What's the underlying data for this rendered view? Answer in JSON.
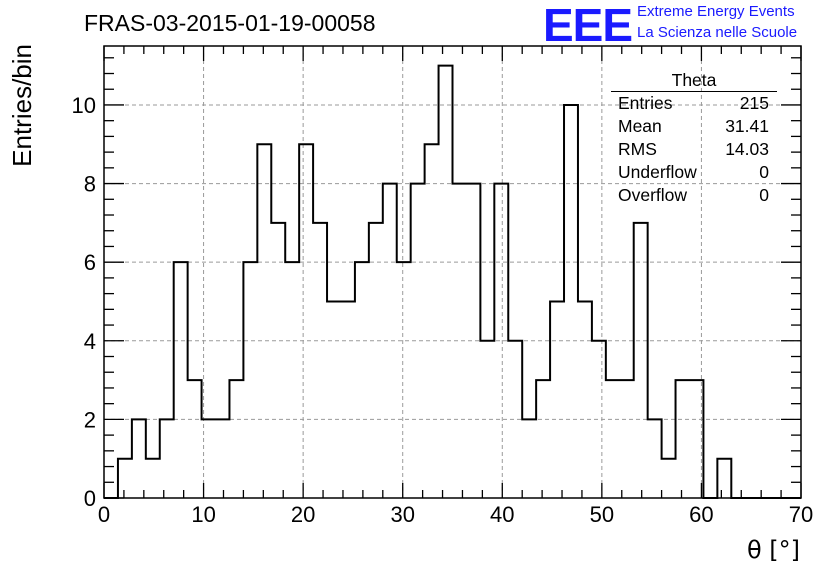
{
  "header": {
    "title": "FRAS-03-2015-01-19-00058",
    "logo_text": "EEE",
    "logo_line1": "Extreme Energy Events",
    "logo_line2": "La Scienza nelle Scuole",
    "logo_color": "#1a1aff"
  },
  "stats_box": {
    "name": "Theta",
    "rows": [
      {
        "label": "Entries",
        "value": "215"
      },
      {
        "label": "Mean",
        "value": "31.41"
      },
      {
        "label": "RMS",
        "value": "14.03"
      },
      {
        "label": "Underflow",
        "value": "0"
      },
      {
        "label": "Overflow",
        "value": "0"
      }
    ]
  },
  "chart_data": {
    "type": "histogram",
    "title": "FRAS-03-2015-01-19-00058",
    "xlabel": "θ [°]",
    "ylabel": "Entries/bin",
    "xlim": [
      0,
      70
    ],
    "ylim": [
      0,
      11.5
    ],
    "x_ticks": [
      0,
      10,
      20,
      30,
      40,
      50,
      60,
      70
    ],
    "y_ticks": [
      0,
      2,
      4,
      6,
      8,
      10
    ],
    "grid": true,
    "bin_width": 1.4,
    "bin_start": 0,
    "values": [
      0,
      1,
      2,
      1,
      2,
      6,
      3,
      2,
      2,
      3,
      6,
      9,
      7,
      6,
      9,
      7,
      5,
      5,
      6,
      7,
      8,
      6,
      8,
      9,
      11,
      8,
      8,
      4,
      8,
      4,
      2,
      3,
      5,
      10,
      5,
      4,
      3,
      3,
      7,
      2,
      1,
      3,
      3,
      0,
      1,
      0,
      0,
      0,
      0,
      0
    ],
    "stats": {
      "entries": 215,
      "mean": 31.41,
      "rms": 14.03,
      "underflow": 0,
      "overflow": 0
    }
  }
}
